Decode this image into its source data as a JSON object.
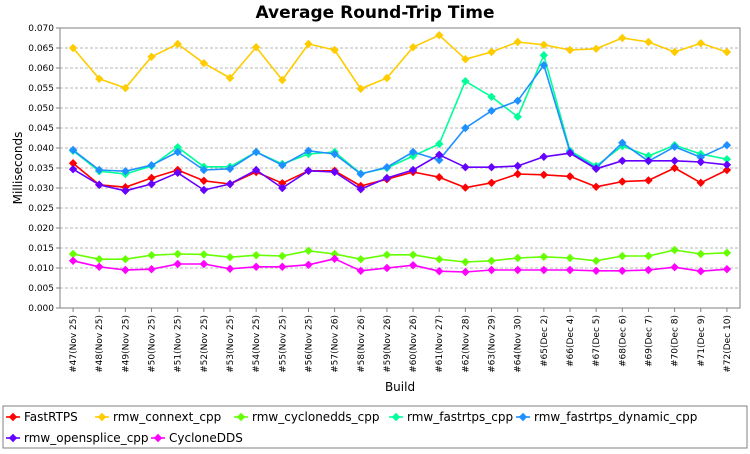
{
  "chart_data": {
    "type": "line",
    "title": "Average Round-Trip Time",
    "xlabel": "Build",
    "ylabel": "Milliseconds",
    "ylim": [
      0,
      0.07
    ],
    "yticks": [
      "0.000",
      "0.005",
      "0.010",
      "0.015",
      "0.020",
      "0.025",
      "0.030",
      "0.035",
      "0.040",
      "0.045",
      "0.050",
      "0.055",
      "0.060",
      "0.065",
      "0.070"
    ],
    "grid": true,
    "legend_position": "bottom",
    "categories": [
      "#47(Nov 25)",
      "#48(Nov 25)",
      "#49(Nov 25)",
      "#50(Nov 25)",
      "#51(Nov 25)",
      "#52(Nov 25)",
      "#53(Nov 25)",
      "#54(Nov 25)",
      "#55(Nov 25)",
      "#56(Nov 25)",
      "#57(Nov 26)",
      "#58(Nov 26)",
      "#59(Nov 26)",
      "#60(Nov 26)",
      "#61(Nov 27)",
      "#62(Nov 28)",
      "#63(Nov 29)",
      "#64(Nov 30)",
      "#65(Dec 2)",
      "#66(Dec 4)",
      "#67(Dec 5)",
      "#68(Dec 6)",
      "#69(Dec 7)",
      "#70(Dec 8)",
      "#71(Dec 9)",
      "#72(Dec 10)"
    ],
    "series": [
      {
        "name": "FastRTPS",
        "color": "#ff0000",
        "values": [
          0.0362,
          0.0308,
          0.0302,
          0.0325,
          0.0345,
          0.0318,
          0.031,
          0.034,
          0.0312,
          0.0343,
          0.0343,
          0.0305,
          0.0322,
          0.034,
          0.0327,
          0.0301,
          0.0313,
          0.0335,
          0.0333,
          0.0329,
          0.0303,
          0.0316,
          0.0319,
          0.035,
          0.0313,
          0.0345
        ]
      },
      {
        "name": "rmw_connext_cpp",
        "color": "#ffcc00",
        "values": [
          0.065,
          0.0573,
          0.055,
          0.0628,
          0.066,
          0.0612,
          0.0575,
          0.0652,
          0.057,
          0.066,
          0.0645,
          0.0548,
          0.0575,
          0.0652,
          0.0682,
          0.0622,
          0.064,
          0.0665,
          0.0658,
          0.0645,
          0.0648,
          0.0675,
          0.0665,
          0.064,
          0.0662,
          0.064
        ]
      },
      {
        "name": "rmw_cyclonedds_cpp",
        "color": "#66ff00",
        "values": [
          0.0135,
          0.0122,
          0.0122,
          0.0132,
          0.0135,
          0.0134,
          0.0127,
          0.0132,
          0.013,
          0.0143,
          0.0135,
          0.0122,
          0.0133,
          0.0133,
          0.0122,
          0.0115,
          0.0118,
          0.0125,
          0.0128,
          0.0125,
          0.0118,
          0.013,
          0.013,
          0.0145,
          0.0135,
          0.0138
        ]
      },
      {
        "name": "rmw_fastrtps_cpp",
        "color": "#00ff99",
        "values": [
          0.0393,
          0.0342,
          0.0335,
          0.0355,
          0.0402,
          0.0353,
          0.0353,
          0.039,
          0.036,
          0.0385,
          0.039,
          0.0336,
          0.035,
          0.038,
          0.041,
          0.0567,
          0.0528,
          0.0478,
          0.0632,
          0.0393,
          0.0355,
          0.0405,
          0.038,
          0.0407,
          0.0385,
          0.0372
        ]
      },
      {
        "name": "rmw_fastrtps_dynamic_cpp",
        "color": "#1e90ff",
        "values": [
          0.0395,
          0.0345,
          0.0342,
          0.0357,
          0.039,
          0.0345,
          0.0348,
          0.039,
          0.0357,
          0.0393,
          0.0385,
          0.0335,
          0.0352,
          0.039,
          0.037,
          0.045,
          0.0493,
          0.0518,
          0.0607,
          0.039,
          0.035,
          0.0413,
          0.0367,
          0.0403,
          0.0377,
          0.0407
        ]
      },
      {
        "name": "rmw_opensplice_cpp",
        "color": "#6600ff",
        "values": [
          0.0347,
          0.0308,
          0.0293,
          0.031,
          0.0338,
          0.0295,
          0.031,
          0.0345,
          0.03,
          0.0343,
          0.034,
          0.0297,
          0.0325,
          0.0345,
          0.0383,
          0.0352,
          0.0352,
          0.0355,
          0.0378,
          0.0387,
          0.0348,
          0.0368,
          0.0368,
          0.0368,
          0.0365,
          0.0358
        ]
      },
      {
        "name": "CycloneDDS",
        "color": "#ff00ff",
        "values": [
          0.0118,
          0.0103,
          0.0095,
          0.0097,
          0.011,
          0.011,
          0.0098,
          0.0103,
          0.0103,
          0.0108,
          0.0123,
          0.0093,
          0.01,
          0.0107,
          0.0092,
          0.009,
          0.0095,
          0.0095,
          0.0095,
          0.0095,
          0.0093,
          0.0093,
          0.0095,
          0.0102,
          0.0092,
          0.0097
        ]
      }
    ]
  }
}
